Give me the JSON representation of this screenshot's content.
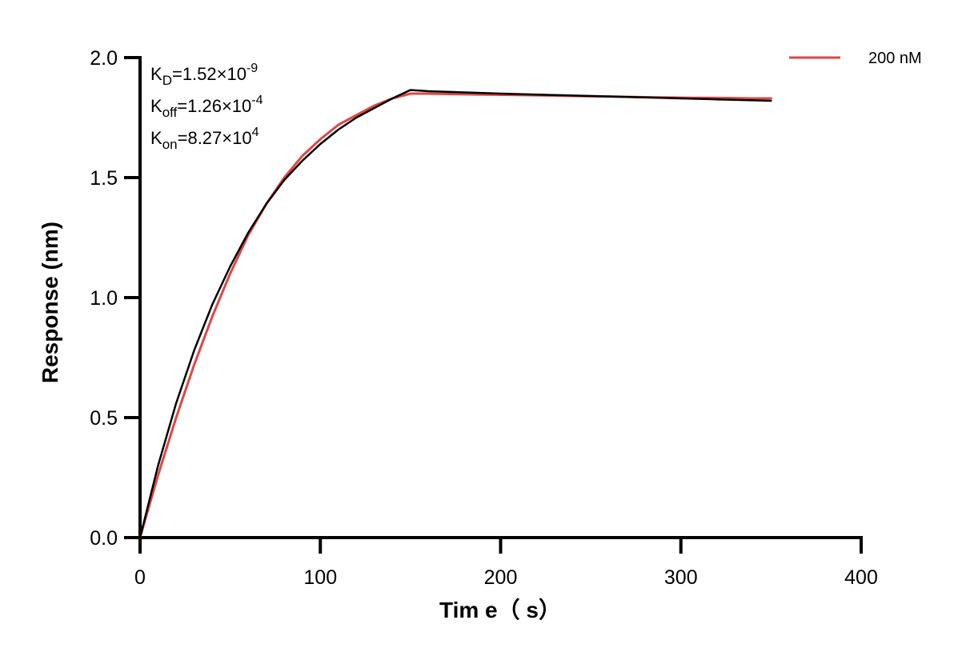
{
  "chart_data": {
    "type": "line",
    "xlabel": "Tim e（ s）",
    "ylabel": "Response (nm)",
    "xlim": [
      0,
      400
    ],
    "ylim": [
      0,
      2.0
    ],
    "x_ticks": [
      "0",
      "100",
      "200",
      "300",
      "400"
    ],
    "y_ticks": [
      "0.0",
      "0.5",
      "1.0",
      "1.5",
      "2.0"
    ],
    "grid": false,
    "legend_position": "top-right",
    "annotations": [
      {
        "base": "K",
        "sub": "D",
        "mid": "=1.52×10",
        "sup": "-9"
      },
      {
        "base": "K",
        "sub": "off",
        "mid": "=1.26×10",
        "sup": "-4"
      },
      {
        "base": "K",
        "sub": "on",
        "mid": "=8.27×10",
        "sup": "4"
      }
    ],
    "series": [
      {
        "name": "200 nM",
        "color": "#e04646",
        "x": [
          0,
          10,
          20,
          30,
          40,
          50,
          60,
          70,
          80,
          90,
          100,
          110,
          120,
          130,
          140,
          150,
          160,
          180,
          200,
          220,
          240,
          260,
          280,
          300,
          320,
          340,
          350
        ],
        "values": [
          0.0,
          0.26,
          0.5,
          0.72,
          0.92,
          1.1,
          1.26,
          1.39,
          1.5,
          1.59,
          1.66,
          1.72,
          1.76,
          1.8,
          1.83,
          1.85,
          1.85,
          1.847,
          1.845,
          1.843,
          1.84,
          1.838,
          1.835,
          1.833,
          1.832,
          1.83,
          1.83
        ]
      },
      {
        "color": "#000000",
        "x": [
          0,
          10,
          20,
          30,
          40,
          50,
          60,
          70,
          80,
          90,
          100,
          110,
          120,
          130,
          140,
          150,
          160,
          180,
          200,
          220,
          240,
          260,
          280,
          300,
          320,
          340,
          350
        ],
        "values": [
          0.0,
          0.3,
          0.56,
          0.78,
          0.97,
          1.13,
          1.27,
          1.39,
          1.49,
          1.57,
          1.64,
          1.7,
          1.75,
          1.79,
          1.83,
          1.865,
          1.86,
          1.855,
          1.85,
          1.846,
          1.842,
          1.838,
          1.834,
          1.83,
          1.826,
          1.822,
          1.82
        ]
      }
    ]
  }
}
